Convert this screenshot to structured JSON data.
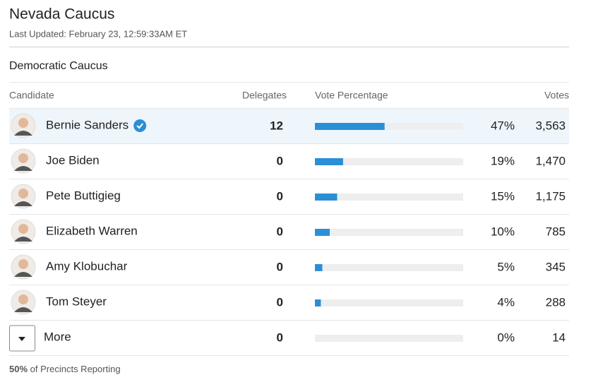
{
  "header": {
    "title": "Nevada Caucus",
    "updated": "Last Updated: February 23, 12:59:33AM ET"
  },
  "section": {
    "title": "Democratic Caucus"
  },
  "table": {
    "columns": [
      "Candidate",
      "Delegates",
      "Vote Percentage",
      "Votes"
    ],
    "bar_color": "#2b8fd6",
    "rows": [
      {
        "name": "Bernie Sanders",
        "winner": true,
        "delegates": 12,
        "percent": 47,
        "percent_label": "47%",
        "votes": "3,563"
      },
      {
        "name": "Joe Biden",
        "delegates": 0,
        "percent": 19,
        "percent_label": "19%",
        "votes": "1,470"
      },
      {
        "name": "Pete Buttigieg",
        "delegates": 0,
        "percent": 15,
        "percent_label": "15%",
        "votes": "1,175"
      },
      {
        "name": "Elizabeth Warren",
        "delegates": 0,
        "percent": 10,
        "percent_label": "10%",
        "votes": "785"
      },
      {
        "name": "Amy Klobuchar",
        "delegates": 0,
        "percent": 5,
        "percent_label": "5%",
        "votes": "345"
      },
      {
        "name": "Tom Steyer",
        "delegates": 0,
        "percent": 4,
        "percent_label": "4%",
        "votes": "288"
      }
    ],
    "more": {
      "name": "More",
      "delegates": 0,
      "percent": 0,
      "percent_label": "0%",
      "votes": "14"
    }
  },
  "footer": {
    "percent_label": "50%",
    "text": "of Precincts Reporting"
  }
}
